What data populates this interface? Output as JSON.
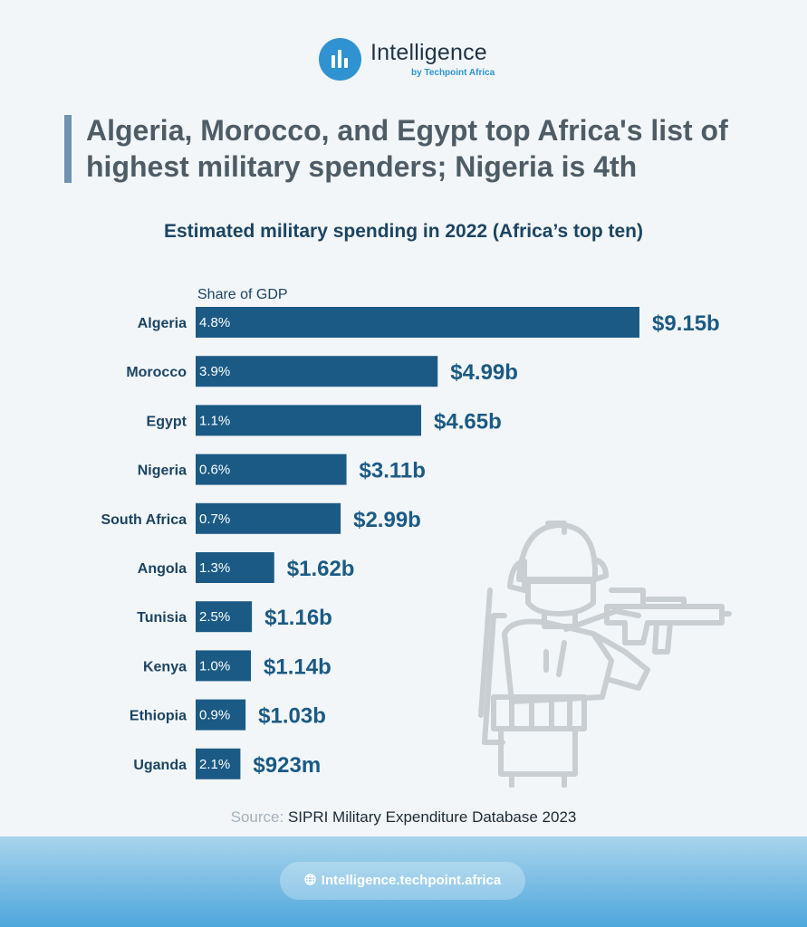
{
  "brand": {
    "name": "Intelligence",
    "sub": "by Techpoint Africa"
  },
  "headline": "Algeria, Morocco, and Egypt top Africa's list of highest military spenders; Nigeria is 4th",
  "colors": {
    "bar": "#1b5a85",
    "headline": "#4e5c66",
    "accent": "#2f93d1"
  },
  "chart_data": {
    "type": "bar",
    "orientation": "horizontal",
    "title": "Estimated military spending in 2022 (Africa’s top ten)",
    "legend_label": "Share of GDP",
    "categories": [
      "Algeria",
      "Morocco",
      "Egypt",
      "Nigeria",
      "South Africa",
      "Angola",
      "Tunisia",
      "Kenya",
      "Ethiopia",
      "Uganda"
    ],
    "values": [
      9.15,
      4.99,
      4.65,
      3.11,
      2.99,
      1.62,
      1.16,
      1.14,
      1.03,
      0.923
    ],
    "value_labels": [
      "$9.15b",
      "$4.99b",
      "$4.65b",
      "$3.11b",
      "$2.99b",
      "$1.62b",
      "$1.16b",
      "$1.14b",
      "$1.03b",
      "$923m"
    ],
    "share_of_gdp": [
      "4.8%",
      "3.9%",
      "1.1%",
      "0.6%",
      "0.7%",
      "1.3%",
      "2.5%",
      "1.0%",
      "0.9%",
      "2.1%"
    ],
    "unit": "USD billions"
  },
  "source": {
    "label": "Source:",
    "text": "SIPRI Military Expenditure Database 2023"
  },
  "footer": {
    "url": "Intelligence.techpoint.africa",
    "icon": "globe-icon"
  },
  "illustration": "soldier-icon"
}
